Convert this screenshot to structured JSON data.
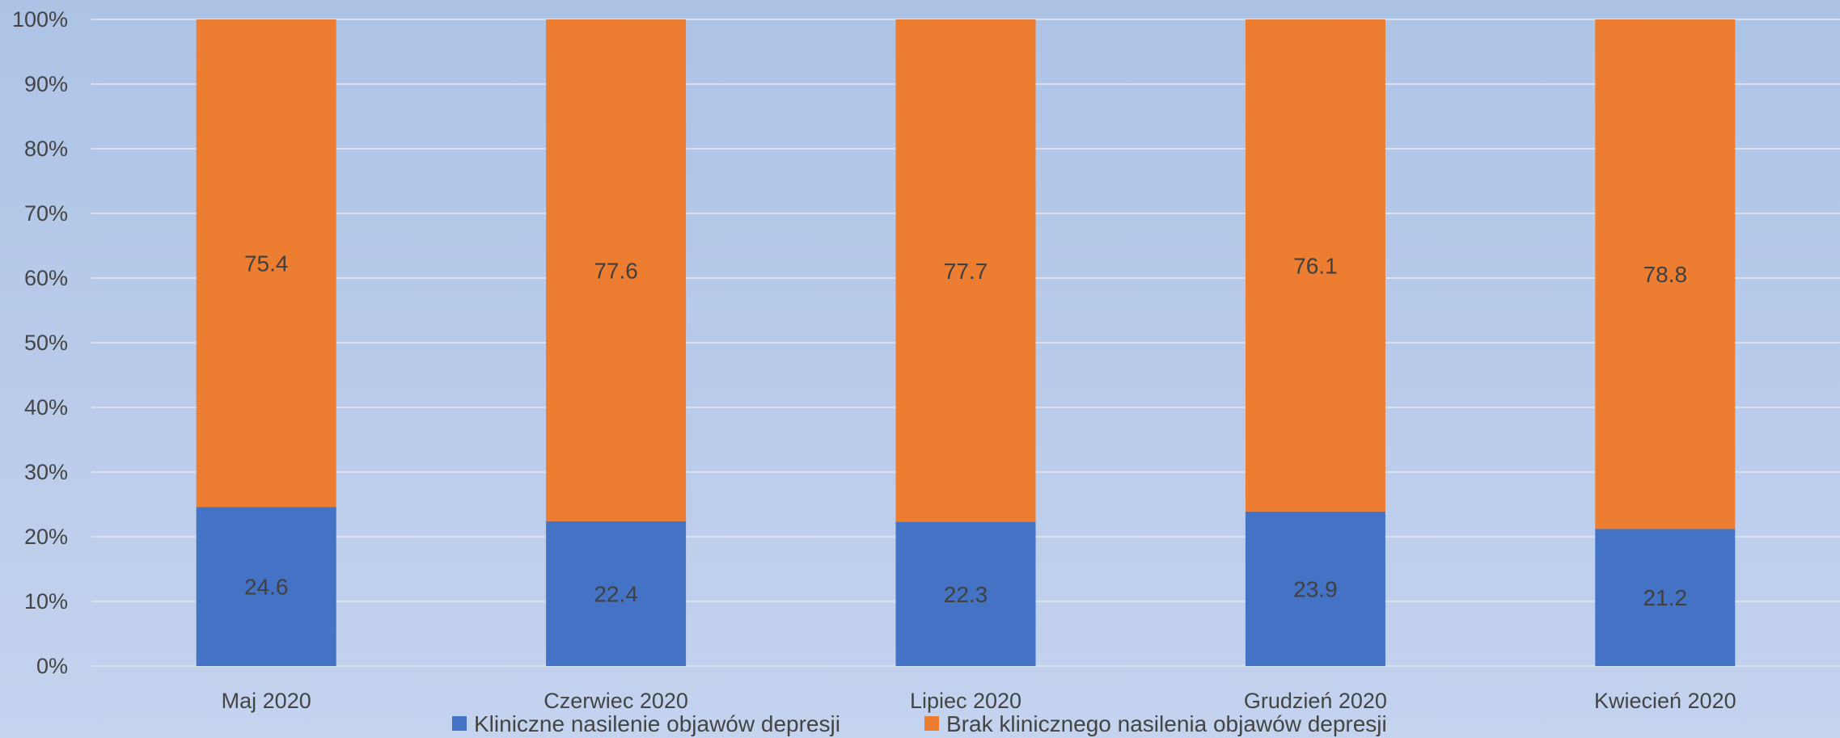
{
  "chart_data": {
    "type": "bar",
    "stacked": true,
    "percent_stacked": true,
    "categories": [
      "Maj 2020",
      "Czerwiec 2020",
      "Lipiec 2020",
      "Grudzień 2020",
      "Kwiecień 2020"
    ],
    "series": [
      {
        "name": "Kliniczne nasilenie objawów depresji",
        "values": [
          24.6,
          22.4,
          22.3,
          23.9,
          21.2
        ],
        "color": "#4472c4"
      },
      {
        "name": "Brak klinicznego nasilenia objawów depresji",
        "values": [
          75.4,
          77.6,
          77.7,
          76.1,
          78.8
        ],
        "color": "#ed7d31"
      }
    ],
    "y_ticks": [
      "0%",
      "10%",
      "20%",
      "30%",
      "40%",
      "50%",
      "60%",
      "70%",
      "80%",
      "90%",
      "100%"
    ],
    "ylim": [
      0,
      100
    ],
    "grid": true,
    "legend_position": "bottom",
    "title": "",
    "xlabel": "",
    "ylabel": ""
  }
}
